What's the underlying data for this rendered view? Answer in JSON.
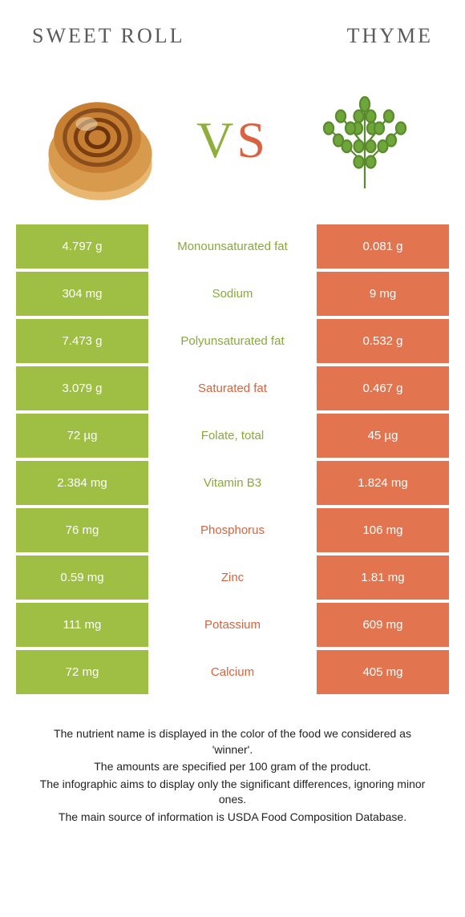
{
  "titles": {
    "left": "SWEET ROLL",
    "right": "THYME"
  },
  "vs": {
    "v": "V",
    "s": "S"
  },
  "colors": {
    "green": "#9fbf44",
    "orange": "#e2754f",
    "mid_green": "#88a93a",
    "mid_orange": "#d6643f"
  },
  "rows": [
    {
      "left": "4.797 g",
      "mid": "Monounsaturated fat",
      "right": "0.081 g",
      "winner": "green"
    },
    {
      "left": "304 mg",
      "mid": "Sodium",
      "right": "9 mg",
      "winner": "green"
    },
    {
      "left": "7.473 g",
      "mid": "Polyunsaturated fat",
      "right": "0.532 g",
      "winner": "green"
    },
    {
      "left": "3.079 g",
      "mid": "Saturated fat",
      "right": "0.467 g",
      "winner": "orange"
    },
    {
      "left": "72 µg",
      "mid": "Folate, total",
      "right": "45 µg",
      "winner": "green"
    },
    {
      "left": "2.384 mg",
      "mid": "Vitamin B3",
      "right": "1.824 mg",
      "winner": "green"
    },
    {
      "left": "76 mg",
      "mid": "Phosphorus",
      "right": "106 mg",
      "winner": "orange"
    },
    {
      "left": "0.59 mg",
      "mid": "Zinc",
      "right": "1.81 mg",
      "winner": "orange"
    },
    {
      "left": "111 mg",
      "mid": "Potassium",
      "right": "609 mg",
      "winner": "orange"
    },
    {
      "left": "72 mg",
      "mid": "Calcium",
      "right": "405 mg",
      "winner": "orange"
    }
  ],
  "footer": [
    "The nutrient name is displayed in the color of the food we considered as 'winner'.",
    "The amounts are specified per 100 gram of the product.",
    "The infographic aims to display only the significant differences, ignoring minor ones.",
    "The main source of information is USDA Food Composition Database."
  ]
}
